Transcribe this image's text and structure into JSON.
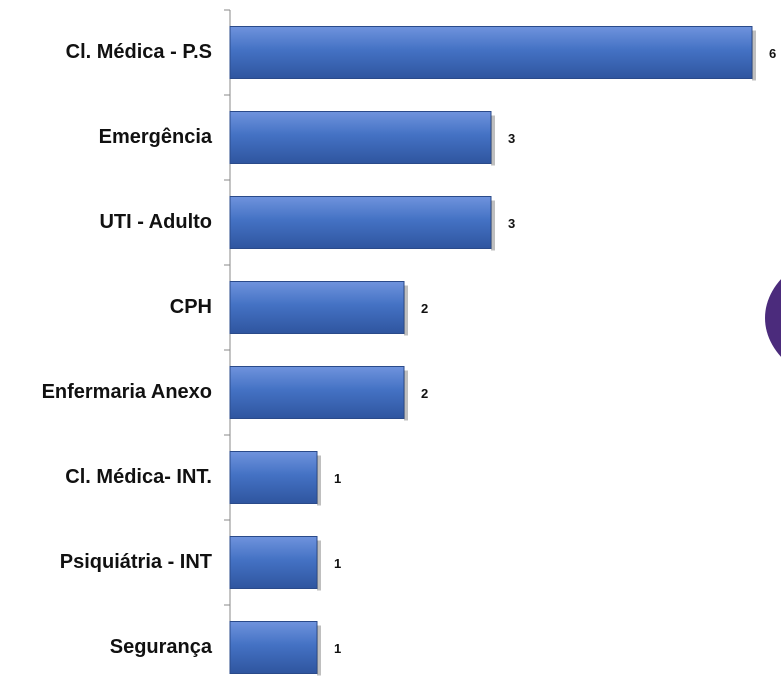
{
  "chart_data": {
    "type": "hbar",
    "categories": [
      "Cl. Médica - P.S",
      "Emergência",
      "UTI - Adulto",
      "CPH",
      "Enfermaria Anexo",
      "Cl. Médica-  INT.",
      "Psiquiátria - INT",
      "Segurança"
    ],
    "values": [
      6,
      3,
      3,
      2,
      2,
      1,
      1,
      1
    ],
    "color": "#4472c4"
  }
}
